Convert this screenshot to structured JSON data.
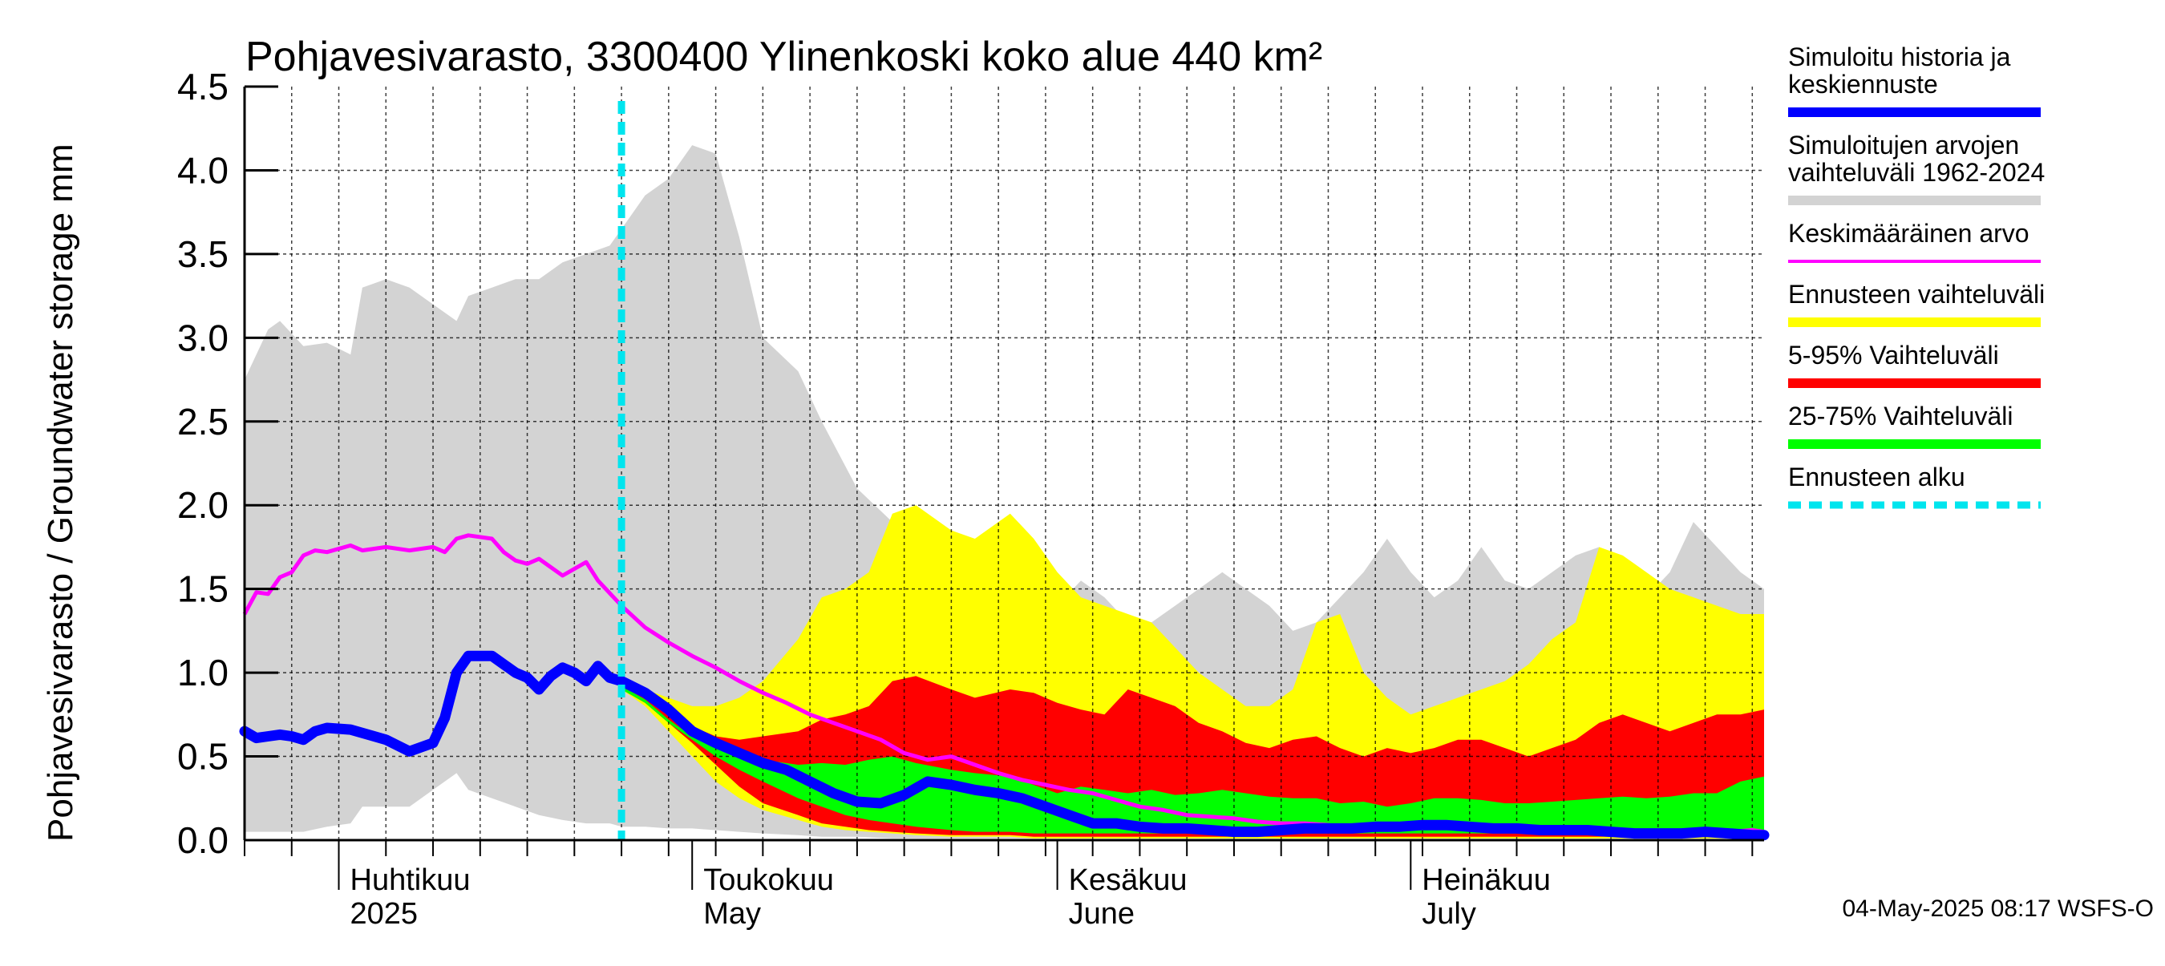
{
  "chart_data": {
    "type": "area",
    "title": "Pohjavesivarasto, 3300400 Ylinenkoski koko alue 440 km²",
    "ylabel": "Pohjavesivarasto / Groundwater storage   mm",
    "ylim": [
      0,
      4.5
    ],
    "y_ticks": [
      "0.0",
      "0.5",
      "1.0",
      "1.5",
      "2.0",
      "2.5",
      "3.0",
      "3.5",
      "4.0",
      "4.5"
    ],
    "x_start_day": 83,
    "x_end_day": 212,
    "forecast_start_day": 115,
    "grid": true,
    "legend_position": "right",
    "month_labels": [
      {
        "day": 91,
        "fi": "Huhtikuu",
        "en": "2025"
      },
      {
        "day": 121,
        "fi": "Toukokuu",
        "en": "May"
      },
      {
        "day": 152,
        "fi": "Kesäkuu",
        "en": "June"
      },
      {
        "day": 182,
        "fi": "Heinäkuu",
        "en": "July"
      }
    ],
    "colors": {
      "history": "#0000ff",
      "range_1962_2024": "#d3d3d3",
      "mean": "#ff00ff",
      "forecast_range": "#ffff00",
      "p5_95": "#ff0000",
      "p25_75": "#00ff00",
      "forecast_start": "#00e5ee"
    },
    "series": [
      {
        "name": "Simuloitujen arvojen vaihteluväli 1962-2024",
        "kind": "band",
        "x": [
          83,
          85,
          86,
          88,
          90,
          92,
          93,
          95,
          97,
          99,
          101,
          102,
          104,
          106,
          108,
          110,
          112,
          114,
          115,
          117,
          119,
          121,
          123,
          125,
          127,
          130,
          132,
          135,
          138,
          140,
          143,
          145,
          148,
          150,
          152,
          154,
          156,
          158,
          160,
          162,
          164,
          166,
          168,
          170,
          172,
          174,
          176,
          178,
          180,
          182,
          184,
          186,
          188,
          190,
          192,
          194,
          196,
          198,
          200,
          202,
          204,
          206,
          208,
          210,
          212
        ],
        "upper": [
          2.75,
          3.05,
          3.1,
          2.95,
          2.97,
          2.9,
          3.3,
          3.35,
          3.3,
          3.2,
          3.1,
          3.25,
          3.3,
          3.35,
          3.35,
          3.45,
          3.5,
          3.55,
          3.65,
          3.85,
          3.95,
          4.15,
          4.1,
          3.6,
          3.0,
          2.8,
          2.5,
          2.1,
          1.9,
          1.8,
          1.7,
          1.6,
          1.5,
          1.3,
          1.4,
          1.55,
          1.45,
          1.3,
          1.3,
          1.4,
          1.5,
          1.6,
          1.5,
          1.4,
          1.25,
          1.3,
          1.45,
          1.6,
          1.8,
          1.6,
          1.45,
          1.55,
          1.75,
          1.55,
          1.5,
          1.6,
          1.7,
          1.75,
          1.55,
          1.45,
          1.6,
          1.9,
          1.75,
          1.6,
          1.5
        ],
        "lower": [
          0.05,
          0.05,
          0.05,
          0.05,
          0.08,
          0.1,
          0.2,
          0.2,
          0.2,
          0.3,
          0.4,
          0.3,
          0.25,
          0.2,
          0.15,
          0.12,
          0.1,
          0.1,
          0.08,
          0.08,
          0.07,
          0.07,
          0.06,
          0.05,
          0.04,
          0.03,
          0.02,
          0.02,
          0.01,
          0.01,
          0.01,
          0.01,
          0.01,
          0.01,
          0.01,
          0.01,
          0.01,
          0.01,
          0.01,
          0.01,
          0.01,
          0.01,
          0.01,
          0.01,
          0.01,
          0.01,
          0.01,
          0.01,
          0.01,
          0.01,
          0.01,
          0.01,
          0.01,
          0.01,
          0.01,
          0.01,
          0.01,
          0.01,
          0.01,
          0.01,
          0.01,
          0.01,
          0.01,
          0.01,
          0.01
        ]
      },
      {
        "name": "Ennusteen vaihteluväli",
        "kind": "band",
        "x": [
          115,
          117,
          119,
          121,
          123,
          125,
          127,
          130,
          132,
          134,
          136,
          138,
          140,
          143,
          145,
          148,
          150,
          152,
          154,
          156,
          158,
          160,
          162,
          164,
          166,
          168,
          170,
          172,
          174,
          176,
          178,
          180,
          182,
          184,
          186,
          188,
          190,
          192,
          194,
          196,
          198,
          200,
          202,
          204,
          206,
          208,
          210,
          212
        ],
        "upper": [
          0.95,
          0.9,
          0.85,
          0.8,
          0.8,
          0.85,
          0.95,
          1.2,
          1.45,
          1.5,
          1.6,
          1.95,
          2.0,
          1.85,
          1.8,
          1.95,
          1.8,
          1.6,
          1.45,
          1.4,
          1.35,
          1.3,
          1.15,
          1.0,
          0.9,
          0.8,
          0.8,
          0.9,
          1.3,
          1.35,
          1.0,
          0.85,
          0.75,
          0.8,
          0.85,
          0.9,
          0.95,
          1.05,
          1.2,
          1.3,
          1.75,
          1.7,
          1.6,
          1.5,
          1.45,
          1.4,
          1.35,
          1.35
        ],
        "lower": [
          0.9,
          0.8,
          0.65,
          0.5,
          0.35,
          0.25,
          0.18,
          0.12,
          0.08,
          0.06,
          0.05,
          0.04,
          0.03,
          0.02,
          0.02,
          0.02,
          0.01,
          0.01,
          0.01,
          0.01,
          0.01,
          0.01,
          0.01,
          0.01,
          0.01,
          0.01,
          0.01,
          0.01,
          0.01,
          0.01,
          0.01,
          0.01,
          0.01,
          0.01,
          0.01,
          0.01,
          0.01,
          0.01,
          0.01,
          0.01,
          0.01,
          0.01,
          0.01,
          0.01,
          0.01,
          0.01,
          0.01,
          0.01
        ]
      },
      {
        "name": "5-95% Vaihteluväli",
        "kind": "band",
        "x": [
          115,
          117,
          119,
          121,
          123,
          125,
          127,
          130,
          132,
          134,
          136,
          138,
          140,
          143,
          145,
          148,
          150,
          152,
          154,
          156,
          158,
          160,
          162,
          164,
          166,
          168,
          170,
          172,
          174,
          176,
          178,
          180,
          182,
          184,
          186,
          188,
          190,
          192,
          194,
          196,
          198,
          200,
          202,
          204,
          206,
          208,
          210,
          212
        ],
        "upper": [
          0.93,
          0.85,
          0.75,
          0.68,
          0.62,
          0.6,
          0.62,
          0.65,
          0.72,
          0.75,
          0.8,
          0.95,
          0.98,
          0.9,
          0.85,
          0.9,
          0.88,
          0.82,
          0.78,
          0.75,
          0.9,
          0.85,
          0.8,
          0.7,
          0.65,
          0.58,
          0.55,
          0.6,
          0.62,
          0.55,
          0.5,
          0.55,
          0.52,
          0.55,
          0.6,
          0.6,
          0.55,
          0.5,
          0.55,
          0.6,
          0.7,
          0.75,
          0.7,
          0.65,
          0.7,
          0.75,
          0.75,
          0.78
        ],
        "lower": [
          0.9,
          0.82,
          0.7,
          0.58,
          0.45,
          0.32,
          0.22,
          0.15,
          0.1,
          0.08,
          0.06,
          0.05,
          0.04,
          0.03,
          0.03,
          0.03,
          0.02,
          0.02,
          0.02,
          0.02,
          0.02,
          0.02,
          0.02,
          0.02,
          0.02,
          0.02,
          0.02,
          0.02,
          0.02,
          0.02,
          0.02,
          0.02,
          0.02,
          0.02,
          0.02,
          0.02,
          0.02,
          0.02,
          0.02,
          0.02,
          0.02,
          0.02,
          0.02,
          0.02,
          0.02,
          0.02,
          0.02,
          0.02
        ]
      },
      {
        "name": "25-75% Vaihteluväli",
        "kind": "band",
        "x": [
          115,
          117,
          119,
          121,
          123,
          125,
          127,
          130,
          132,
          134,
          136,
          138,
          140,
          143,
          145,
          148,
          150,
          152,
          154,
          156,
          158,
          160,
          162,
          164,
          166,
          168,
          170,
          172,
          174,
          176,
          178,
          180,
          182,
          184,
          186,
          188,
          190,
          192,
          194,
          196,
          198,
          200,
          202,
          204,
          206,
          208,
          210,
          212
        ],
        "upper": [
          0.92,
          0.84,
          0.72,
          0.62,
          0.55,
          0.52,
          0.48,
          0.45,
          0.46,
          0.45,
          0.48,
          0.5,
          0.46,
          0.42,
          0.4,
          0.38,
          0.33,
          0.28,
          0.32,
          0.3,
          0.28,
          0.3,
          0.27,
          0.28,
          0.3,
          0.28,
          0.26,
          0.25,
          0.25,
          0.22,
          0.23,
          0.2,
          0.22,
          0.25,
          0.25,
          0.24,
          0.22,
          0.22,
          0.23,
          0.24,
          0.25,
          0.26,
          0.25,
          0.26,
          0.28,
          0.28,
          0.35,
          0.38
        ],
        "lower": [
          0.9,
          0.82,
          0.7,
          0.6,
          0.5,
          0.42,
          0.35,
          0.25,
          0.2,
          0.15,
          0.12,
          0.1,
          0.08,
          0.06,
          0.05,
          0.05,
          0.04,
          0.04,
          0.04,
          0.04,
          0.04,
          0.04,
          0.04,
          0.04,
          0.04,
          0.04,
          0.04,
          0.04,
          0.04,
          0.04,
          0.04,
          0.04,
          0.04,
          0.04,
          0.04,
          0.04,
          0.04,
          0.04,
          0.04,
          0.04,
          0.04,
          0.04,
          0.04,
          0.04,
          0.04,
          0.04,
          0.04,
          0.04
        ]
      },
      {
        "name": "Keskimääräinen arvo",
        "kind": "line",
        "x": [
          83,
          84,
          85,
          86,
          87,
          88,
          89,
          90,
          92,
          93,
          95,
          97,
          99,
          100,
          101,
          102,
          104,
          105,
          106,
          107,
          108,
          110,
          112,
          113,
          115,
          117,
          119,
          121,
          123,
          125,
          127,
          129,
          131,
          133,
          135,
          137,
          139,
          141,
          143,
          145,
          147,
          149,
          151,
          153,
          155,
          157,
          159,
          161,
          163,
          165,
          167,
          169,
          171,
          173,
          175,
          177,
          179,
          181,
          183,
          185,
          187,
          189,
          191,
          193,
          195,
          197,
          199,
          201,
          203,
          205,
          207,
          209,
          211,
          212
        ],
        "values": [
          1.35,
          1.48,
          1.47,
          1.57,
          1.6,
          1.7,
          1.73,
          1.72,
          1.76,
          1.73,
          1.75,
          1.73,
          1.75,
          1.72,
          1.8,
          1.82,
          1.8,
          1.72,
          1.67,
          1.65,
          1.68,
          1.58,
          1.66,
          1.55,
          1.4,
          1.27,
          1.18,
          1.1,
          1.03,
          0.95,
          0.88,
          0.82,
          0.75,
          0.7,
          0.65,
          0.6,
          0.52,
          0.48,
          0.5,
          0.45,
          0.4,
          0.36,
          0.33,
          0.3,
          0.28,
          0.24,
          0.2,
          0.18,
          0.15,
          0.14,
          0.13,
          0.11,
          0.1,
          0.1,
          0.09,
          0.08,
          0.08,
          0.09,
          0.1,
          0.08,
          0.07,
          0.07,
          0.06,
          0.06,
          0.06,
          0.07,
          0.05,
          0.04,
          0.03,
          0.03,
          0.04,
          0.05,
          0.06,
          0.05
        ]
      },
      {
        "name": "Simuloitu historia ja keskiennuste",
        "kind": "line",
        "x": [
          83,
          84,
          85,
          86,
          87,
          88,
          89,
          90,
          92,
          94,
          95,
          97,
          99,
          100,
          101,
          102,
          104,
          105,
          106,
          107,
          108,
          109,
          110,
          111,
          112,
          113,
          114,
          115,
          117,
          119,
          121,
          123,
          125,
          127,
          129,
          131,
          133,
          135,
          137,
          139,
          141,
          143,
          145,
          147,
          149,
          151,
          153,
          155,
          157,
          159,
          161,
          163,
          165,
          167,
          169,
          171,
          173,
          175,
          177,
          179,
          181,
          183,
          185,
          187,
          189,
          191,
          193,
          195,
          197,
          199,
          201,
          203,
          205,
          207,
          209,
          211,
          212
        ],
        "values": [
          0.65,
          0.61,
          0.62,
          0.63,
          0.62,
          0.6,
          0.65,
          0.67,
          0.66,
          0.62,
          0.6,
          0.53,
          0.58,
          0.73,
          1.0,
          1.1,
          1.1,
          1.05,
          1.0,
          0.97,
          0.9,
          0.98,
          1.03,
          1.0,
          0.95,
          1.04,
          0.97,
          0.95,
          0.88,
          0.78,
          0.65,
          0.58,
          0.52,
          0.46,
          0.42,
          0.35,
          0.28,
          0.23,
          0.22,
          0.27,
          0.35,
          0.33,
          0.3,
          0.28,
          0.25,
          0.2,
          0.15,
          0.1,
          0.1,
          0.08,
          0.07,
          0.07,
          0.06,
          0.05,
          0.05,
          0.06,
          0.07,
          0.07,
          0.07,
          0.08,
          0.08,
          0.09,
          0.09,
          0.08,
          0.07,
          0.07,
          0.06,
          0.06,
          0.06,
          0.05,
          0.04,
          0.04,
          0.04,
          0.05,
          0.04,
          0.03,
          0.03
        ]
      }
    ],
    "legend": [
      {
        "key": "history",
        "lines": [
          "Simuloitu historia ja",
          "keskiennuste"
        ],
        "style": "thick"
      },
      {
        "key": "range_1962_2024",
        "lines": [
          "Simuloitujen arvojen",
          "vaihteluväli 1962-2024"
        ],
        "style": "thick"
      },
      {
        "key": "mean",
        "lines": [
          "Keskimääräinen arvo"
        ],
        "style": "thin"
      },
      {
        "key": "forecast_range",
        "lines": [
          "Ennusteen vaihteluväli"
        ],
        "style": "thick"
      },
      {
        "key": "p5_95",
        "lines": [
          "5-95% Vaihteluväli"
        ],
        "style": "thick"
      },
      {
        "key": "p25_75",
        "lines": [
          "25-75% Vaihteluväli"
        ],
        "style": "thick"
      },
      {
        "key": "forecast_start",
        "lines": [
          "Ennusteen alku"
        ],
        "style": "dashed"
      }
    ],
    "footer": "04-May-2025 08:17 WSFS-O"
  }
}
